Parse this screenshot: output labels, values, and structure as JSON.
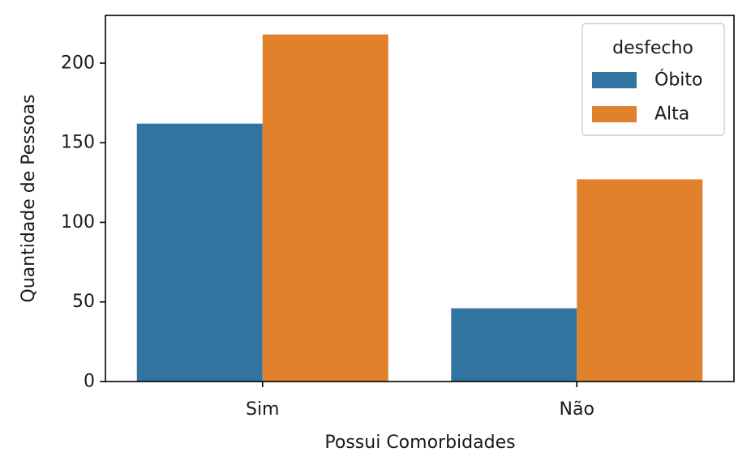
{
  "chart_data": {
    "type": "bar",
    "xlabel": "Possui Comorbidades",
    "ylabel": "Quantidade de Pessoas",
    "categories": [
      "Sim",
      "Não"
    ],
    "series": [
      {
        "name": "Óbito",
        "values": [
          162,
          46
        ],
        "color": "#3274a1"
      },
      {
        "name": "Alta",
        "values": [
          218,
          127
        ],
        "color": "#e1812c"
      }
    ],
    "ylim": [
      0,
      230
    ],
    "yticks": [
      0,
      50,
      100,
      150,
      200
    ],
    "grid": false,
    "legend": {
      "title": "desfecho",
      "placement": "top-right"
    }
  }
}
